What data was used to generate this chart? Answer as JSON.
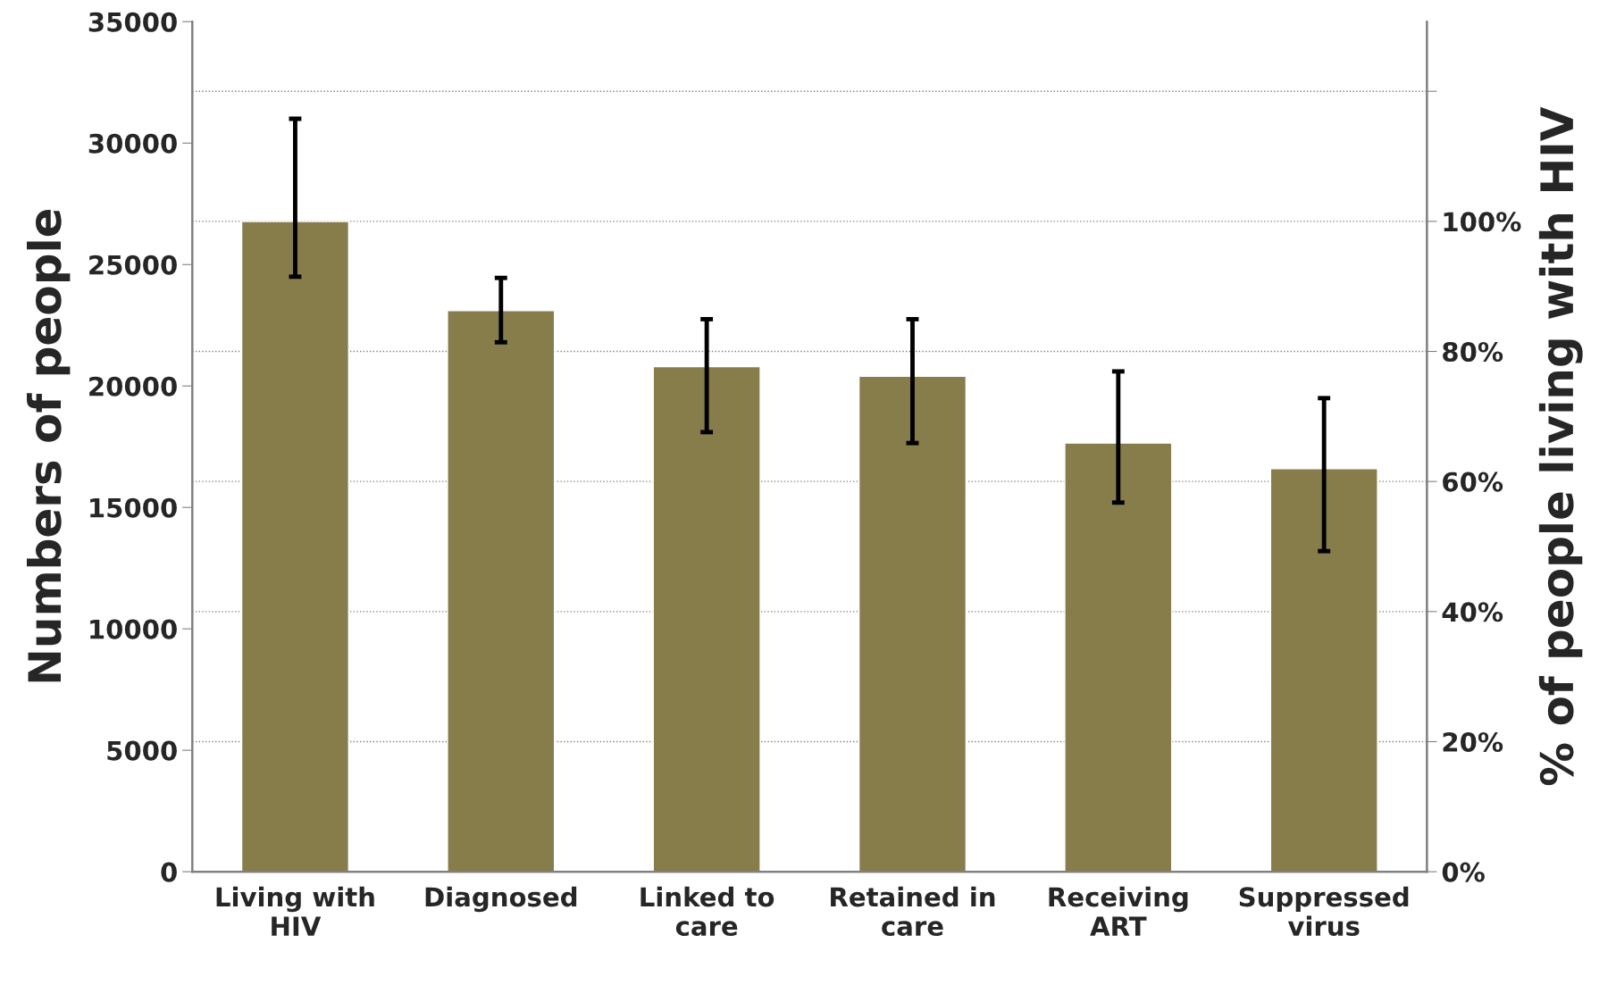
{
  "chart_data": {
    "type": "bar",
    "ylabel": "Numbers of people",
    "y2label": "% of people living with HIV",
    "categories": [
      "Living with\nHIV",
      "Diagnosed",
      "Linked to\ncare",
      "Retained in\ncare",
      "Receiving\nART",
      "Suppressed\nvirus"
    ],
    "series": [
      {
        "color": "#877d4b",
        "values": [
          26770,
          23100,
          20800,
          20400,
          17650,
          16600
        ],
        "errors": [
          [
            24500,
            31000
          ],
          [
            21800,
            24450
          ],
          [
            18100,
            22750
          ],
          [
            17650,
            22750
          ],
          [
            15200,
            20600
          ],
          [
            13200,
            19500
          ]
        ]
      }
    ],
    "ylim": [
      0,
      35000
    ],
    "yticks": [
      0,
      5000,
      10000,
      15000,
      20000,
      25000,
      30000,
      35000
    ],
    "y2lim": [
      0,
      130.7
    ],
    "y2ticks": [
      {
        "value": 0,
        "label": "0%"
      },
      {
        "value": 20,
        "label": "20%"
      },
      {
        "value": 40,
        "label": "40%"
      },
      {
        "value": 60,
        "label": "60%"
      },
      {
        "value": 80,
        "label": "80%"
      },
      {
        "value": 100,
        "label": "100%"
      },
      {
        "value": 120,
        "label": null
      }
    ],
    "grid": true,
    "line_style": "dotted"
  }
}
